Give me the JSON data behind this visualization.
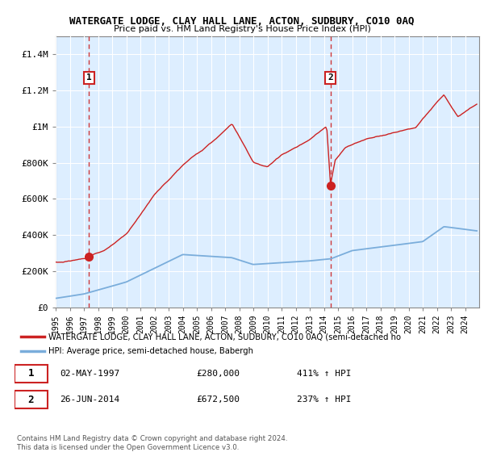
{
  "title": "WATERGATE LODGE, CLAY HALL LANE, ACTON, SUDBURY, CO10 0AQ",
  "subtitle": "Price paid vs. HM Land Registry's House Price Index (HPI)",
  "legend_line1": "WATERGATE LODGE, CLAY HALL LANE, ACTON, SUDBURY, CO10 0AQ (semi-detached ho",
  "legend_line2": "HPI: Average price, semi-detached house, Babergh",
  "annotation1_date": "02-MAY-1997",
  "annotation1_price": "£280,000",
  "annotation1_hpi": "411% ↑ HPI",
  "annotation2_date": "26-JUN-2014",
  "annotation2_price": "£672,500",
  "annotation2_hpi": "237% ↑ HPI",
  "copyright": "Contains HM Land Registry data © Crown copyright and database right 2024.\nThis data is licensed under the Open Government Licence v3.0.",
  "price_color": "#cc2222",
  "hpi_color": "#7aaddb",
  "vline_color": "#cc2222",
  "shade_color": "#ddeeff",
  "ylim": [
    0,
    1500000
  ],
  "yticks": [
    0,
    200000,
    400000,
    600000,
    800000,
    1000000,
    1200000,
    1400000
  ],
  "ytick_labels": [
    "£0",
    "£200K",
    "£400K",
    "£600K",
    "£800K",
    "£1M",
    "£1.2M",
    "£1.4M"
  ],
  "sale1_x": 1997.37,
  "sale1_y": 280000,
  "sale2_x": 2014.46,
  "sale2_y": 672500,
  "xlim": [
    1995,
    2025
  ]
}
